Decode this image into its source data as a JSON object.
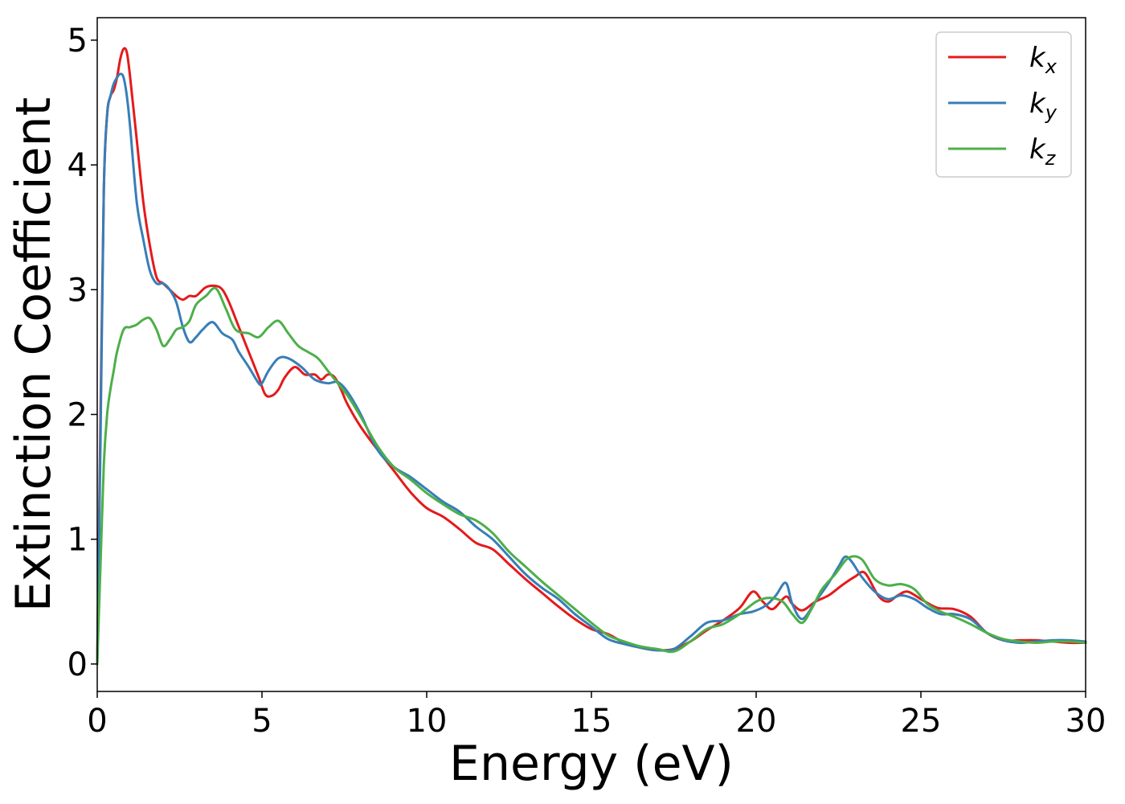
{
  "chart_data": {
    "type": "line",
    "title": "",
    "xlabel": "Energy (eV)",
    "ylabel": "Extinction Coefficient",
    "xlim": [
      0,
      30
    ],
    "ylim": [
      -0.22,
      5.18
    ],
    "xticks": [
      0,
      5,
      10,
      15,
      20,
      25,
      30
    ],
    "yticks": [
      0,
      1,
      2,
      3,
      4,
      5
    ],
    "xtick_labels": [
      "0",
      "5",
      "10",
      "15",
      "20",
      "25",
      "30"
    ],
    "ytick_labels": [
      "0",
      "1",
      "2",
      "3",
      "4",
      "5"
    ],
    "grid": false,
    "legend_placement": "top-right",
    "series": [
      {
        "name": "k_x",
        "legend_main": "k",
        "legend_sub": "x",
        "color": "#e41a1c",
        "x": [
          0,
          0.1,
          0.2,
          0.3,
          0.4,
          0.5,
          0.6,
          0.7,
          0.8,
          0.9,
          1.0,
          1.2,
          1.4,
          1.6,
          1.8,
          2.0,
          2.2,
          2.4,
          2.6,
          2.8,
          3.0,
          3.3,
          3.6,
          3.8,
          4.0,
          4.3,
          4.6,
          4.9,
          5.1,
          5.3,
          5.5,
          5.7,
          6.0,
          6.3,
          6.6,
          6.8,
          7.0,
          7.2,
          7.4,
          7.6,
          8.0,
          8.5,
          9.0,
          9.5,
          10.0,
          10.5,
          11.0,
          11.5,
          12.0,
          12.5,
          13.0,
          13.5,
          14.0,
          14.5,
          15.0,
          15.5,
          16.0,
          16.5,
          17.0,
          17.5,
          18.0,
          18.5,
          19.0,
          19.5,
          19.9,
          20.2,
          20.5,
          20.9,
          21.1,
          21.4,
          21.8,
          22.2,
          22.6,
          23.0,
          23.3,
          23.7,
          24.0,
          24.3,
          24.6,
          25.0,
          25.5,
          26.0,
          26.5,
          27.0,
          27.5,
          28.0,
          28.5,
          29.0,
          29.5,
          30.0
        ],
        "y": [
          0,
          2.0,
          3.8,
          4.4,
          4.55,
          4.6,
          4.7,
          4.85,
          4.93,
          4.9,
          4.7,
          4.2,
          3.7,
          3.35,
          3.1,
          3.05,
          3.0,
          2.95,
          2.92,
          2.95,
          2.95,
          3.02,
          3.03,
          3.0,
          2.9,
          2.7,
          2.5,
          2.3,
          2.16,
          2.15,
          2.2,
          2.3,
          2.38,
          2.32,
          2.32,
          2.28,
          2.32,
          2.3,
          2.2,
          2.08,
          1.9,
          1.72,
          1.55,
          1.38,
          1.25,
          1.18,
          1.08,
          0.97,
          0.92,
          0.8,
          0.68,
          0.57,
          0.46,
          0.36,
          0.28,
          0.24,
          0.17,
          0.13,
          0.11,
          0.12,
          0.18,
          0.27,
          0.35,
          0.45,
          0.58,
          0.5,
          0.44,
          0.54,
          0.48,
          0.43,
          0.5,
          0.55,
          0.63,
          0.7,
          0.73,
          0.55,
          0.5,
          0.55,
          0.58,
          0.52,
          0.45,
          0.44,
          0.38,
          0.25,
          0.19,
          0.19,
          0.19,
          0.18,
          0.17,
          0.17
        ]
      },
      {
        "name": "k_y",
        "legend_main": "k",
        "legend_sub": "y",
        "color": "#377eb8",
        "x": [
          0,
          0.1,
          0.2,
          0.3,
          0.4,
          0.5,
          0.6,
          0.7,
          0.8,
          0.9,
          1.0,
          1.2,
          1.4,
          1.6,
          1.8,
          2.0,
          2.2,
          2.4,
          2.6,
          2.8,
          3.0,
          3.2,
          3.5,
          3.8,
          4.1,
          4.3,
          4.6,
          4.9,
          5.0,
          5.2,
          5.5,
          5.8,
          6.2,
          6.6,
          7.0,
          7.3,
          7.6,
          8.0,
          8.5,
          9.0,
          9.5,
          10.0,
          10.5,
          11.0,
          11.5,
          12.0,
          12.5,
          13.0,
          13.5,
          14.0,
          14.5,
          15.0,
          15.5,
          16.0,
          16.5,
          17.0,
          17.5,
          18.0,
          18.5,
          19.0,
          19.5,
          19.9,
          20.3,
          20.6,
          20.9,
          21.1,
          21.4,
          21.8,
          22.2,
          22.5,
          22.7,
          22.9,
          23.2,
          23.6,
          24.0,
          24.4,
          24.8,
          25.2,
          25.6,
          26.0,
          26.5,
          27.0,
          27.5,
          28.0,
          28.5,
          29.0,
          29.5,
          30.0
        ],
        "y": [
          0,
          1.8,
          3.8,
          4.4,
          4.55,
          4.65,
          4.7,
          4.73,
          4.7,
          4.55,
          4.3,
          3.7,
          3.4,
          3.15,
          3.05,
          3.05,
          3.0,
          2.9,
          2.7,
          2.58,
          2.62,
          2.68,
          2.74,
          2.65,
          2.6,
          2.5,
          2.38,
          2.25,
          2.25,
          2.35,
          2.45,
          2.45,
          2.38,
          2.28,
          2.25,
          2.26,
          2.18,
          2.0,
          1.72,
          1.58,
          1.5,
          1.4,
          1.3,
          1.22,
          1.1,
          1.0,
          0.86,
          0.72,
          0.61,
          0.52,
          0.4,
          0.3,
          0.2,
          0.16,
          0.13,
          0.11,
          0.12,
          0.22,
          0.33,
          0.35,
          0.4,
          0.42,
          0.47,
          0.55,
          0.65,
          0.48,
          0.36,
          0.5,
          0.65,
          0.78,
          0.86,
          0.82,
          0.7,
          0.58,
          0.52,
          0.55,
          0.52,
          0.45,
          0.4,
          0.4,
          0.36,
          0.25,
          0.19,
          0.17,
          0.18,
          0.19,
          0.19,
          0.18
        ]
      },
      {
        "name": "k_z",
        "legend_main": "k",
        "legend_sub": "z",
        "color": "#4daf4a",
        "x": [
          0,
          0.1,
          0.2,
          0.3,
          0.4,
          0.5,
          0.6,
          0.8,
          1.0,
          1.2,
          1.4,
          1.6,
          1.8,
          2.0,
          2.2,
          2.4,
          2.6,
          2.8,
          3.0,
          3.3,
          3.6,
          3.9,
          4.2,
          4.6,
          4.9,
          5.2,
          5.5,
          5.8,
          6.1,
          6.4,
          6.7,
          7.0,
          7.3,
          7.6,
          8.0,
          8.5,
          9.0,
          9.5,
          10.0,
          10.5,
          11.0,
          11.5,
          12.0,
          12.5,
          13.0,
          13.5,
          14.0,
          14.5,
          15.0,
          15.5,
          16.0,
          16.5,
          17.0,
          17.5,
          18.0,
          18.5,
          19.0,
          19.5,
          20.0,
          20.4,
          20.8,
          21.1,
          21.4,
          21.7,
          22.0,
          22.4,
          22.8,
          23.2,
          23.6,
          24.0,
          24.4,
          24.8,
          25.2,
          25.6,
          26.0,
          26.5,
          27.0,
          27.5,
          28.0,
          28.5,
          29.0,
          29.5,
          30.0
        ],
        "y": [
          0,
          0.8,
          1.6,
          2.0,
          2.2,
          2.35,
          2.5,
          2.68,
          2.7,
          2.72,
          2.76,
          2.77,
          2.68,
          2.55,
          2.6,
          2.68,
          2.7,
          2.75,
          2.88,
          2.95,
          3.01,
          2.85,
          2.68,
          2.65,
          2.62,
          2.7,
          2.75,
          2.65,
          2.55,
          2.5,
          2.45,
          2.35,
          2.25,
          2.15,
          1.98,
          1.75,
          1.58,
          1.48,
          1.37,
          1.28,
          1.2,
          1.15,
          1.05,
          0.9,
          0.78,
          0.66,
          0.55,
          0.44,
          0.33,
          0.23,
          0.18,
          0.14,
          0.12,
          0.1,
          0.18,
          0.28,
          0.32,
          0.4,
          0.5,
          0.53,
          0.5,
          0.4,
          0.33,
          0.45,
          0.6,
          0.72,
          0.85,
          0.84,
          0.68,
          0.63,
          0.64,
          0.6,
          0.48,
          0.42,
          0.38,
          0.32,
          0.25,
          0.2,
          0.18,
          0.17,
          0.18,
          0.18,
          0.17
        ]
      }
    ]
  }
}
